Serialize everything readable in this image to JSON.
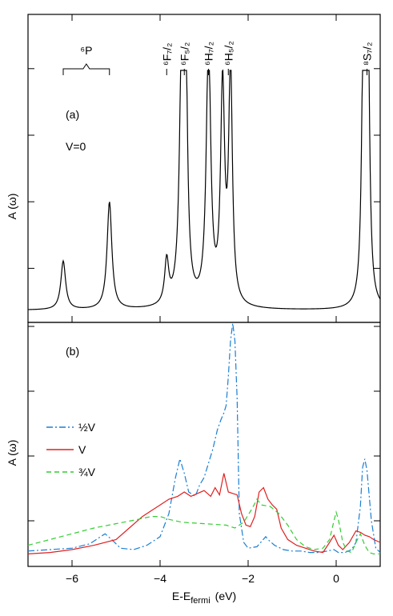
{
  "chart_data": [
    {
      "type": "line",
      "panel_label": "(a)",
      "annotation": "V=0",
      "ylabel": "A (ω)",
      "xlim": [
        -7,
        1
      ],
      "color": "#000000",
      "multiplet_labels": [
        {
          "text": "⁶P",
          "x": [
            -6.2,
            -5.15
          ]
        },
        {
          "text": "⁶F₇/₂",
          "x": -3.85
        },
        {
          "text": "⁶F₅/₂",
          "x": -3.45
        },
        {
          "text": "⁶H₇/₂",
          "x": -2.9
        },
        {
          "text": "⁶H₅/₂",
          "x": -2.45
        },
        {
          "text": "⁸S₇/₂",
          "x": 0.7
        }
      ],
      "peaks": [
        {
          "x": -6.2,
          "h": 0.095,
          "w": 0.065
        },
        {
          "x": -5.15,
          "h": 0.21,
          "w": 0.065
        },
        {
          "x": -3.85,
          "h": 0.085,
          "w": 0.055
        },
        {
          "x": -3.5,
          "h": 0.55,
          "w": 0.06
        },
        {
          "x": -3.42,
          "h": 0.44,
          "w": 0.045
        },
        {
          "x": -2.9,
          "h": 0.52,
          "w": 0.06
        },
        {
          "x": -2.58,
          "h": 0.42,
          "w": 0.055
        },
        {
          "x": -2.4,
          "h": 0.46,
          "w": 0.05
        },
        {
          "x": 0.62,
          "h": 0.55,
          "w": 0.045
        },
        {
          "x": 0.72,
          "h": 0.55,
          "w": 0.045
        }
      ]
    },
    {
      "type": "line",
      "panel_label": "(b)",
      "ylabel": "A (ω)",
      "xlabel": "E-E",
      "xlabel_sub": "fermi",
      "xlabel_unit": "(eV)",
      "xlim": [
        -7,
        1
      ],
      "xticks": [
        -6,
        -4,
        -2,
        0
      ],
      "series": [
        {
          "name": "V",
          "name_prefix": "½",
          "color": "#1a7fd4",
          "dash": "8,3,2,3",
          "x": [
            -7,
            -6.5,
            -6,
            -5.6,
            -5.4,
            -5.25,
            -5.1,
            -4.9,
            -4.6,
            -4.3,
            -4.0,
            -3.8,
            -3.65,
            -3.55,
            -3.45,
            -3.35,
            -3.2,
            -3.1,
            -3.0,
            -2.9,
            -2.8,
            -2.7,
            -2.62,
            -2.55,
            -2.5,
            -2.45,
            -2.4,
            -2.35,
            -2.3,
            -2.25,
            -2.2,
            -2.1,
            -2.0,
            -1.8,
            -1.6,
            -1.55,
            -1.4,
            -1.2,
            -1.0,
            -0.8,
            -0.6,
            -0.4,
            -0.2,
            -0.05,
            0.05,
            0.2,
            0.35,
            0.45,
            0.55,
            0.6,
            0.65,
            0.7,
            0.8,
            0.9,
            1.0
          ],
          "y": [
            0.04,
            0.05,
            0.06,
            0.09,
            0.13,
            0.16,
            0.12,
            0.06,
            0.05,
            0.08,
            0.14,
            0.3,
            0.55,
            0.68,
            0.58,
            0.45,
            0.42,
            0.5,
            0.55,
            0.65,
            0.75,
            0.88,
            0.95,
            1.0,
            1.05,
            1.25,
            1.5,
            1.65,
            1.5,
            1.1,
            0.3,
            0.1,
            0.06,
            0.07,
            0.14,
            0.12,
            0.08,
            0.05,
            0.04,
            0.04,
            0.03,
            0.03,
            0.04,
            0.05,
            0.03,
            0.03,
            0.05,
            0.1,
            0.35,
            0.62,
            0.68,
            0.6,
            0.25,
            0.06,
            0.03
          ]
        },
        {
          "name": "V",
          "name_prefix": "",
          "color": "#e02020",
          "dash": "",
          "x": [
            -7,
            -6.5,
            -6,
            -5.5,
            -5.0,
            -4.7,
            -4.4,
            -4.2,
            -4.0,
            -3.8,
            -3.6,
            -3.45,
            -3.3,
            -3.15,
            -3.0,
            -2.85,
            -2.75,
            -2.65,
            -2.55,
            -2.45,
            -2.35,
            -2.25,
            -2.15,
            -2.05,
            -1.95,
            -1.85,
            -1.75,
            -1.65,
            -1.55,
            -1.45,
            -1.35,
            -1.25,
            -1.1,
            -0.9,
            -0.7,
            -0.5,
            -0.3,
            -0.15,
            -0.05,
            0.05,
            0.15,
            0.3,
            0.45,
            0.55,
            0.65,
            0.75,
            0.85,
            1.0
          ],
          "y": [
            0.02,
            0.03,
            0.05,
            0.08,
            0.12,
            0.2,
            0.28,
            0.32,
            0.36,
            0.4,
            0.42,
            0.45,
            0.42,
            0.44,
            0.46,
            0.42,
            0.48,
            0.43,
            0.58,
            0.45,
            0.44,
            0.43,
            0.3,
            0.22,
            0.21,
            0.28,
            0.45,
            0.48,
            0.4,
            0.36,
            0.33,
            0.2,
            0.12,
            0.08,
            0.06,
            0.04,
            0.03,
            0.1,
            0.15,
            0.08,
            0.05,
            0.1,
            0.18,
            0.17,
            0.15,
            0.14,
            0.12,
            0.1
          ]
        },
        {
          "name": "V",
          "name_prefix": "¾",
          "color": "#33cc33",
          "dash": "6,4",
          "x": [
            -7,
            -6.5,
            -6,
            -5.5,
            -5.0,
            -4.5,
            -4.2,
            -4.0,
            -3.8,
            -3.5,
            -3.0,
            -2.5,
            -2.3,
            -2.1,
            -1.9,
            -1.8,
            -1.7,
            -1.5,
            -1.3,
            -1.1,
            -0.9,
            -0.7,
            -0.5,
            -0.3,
            -0.15,
            -0.05,
            0.0,
            0.05,
            0.15,
            0.25,
            0.35,
            0.45,
            0.55,
            0.65,
            0.75,
            0.85,
            1.0
          ],
          "y": [
            0.08,
            0.12,
            0.16,
            0.2,
            0.23,
            0.26,
            0.28,
            0.28,
            0.26,
            0.24,
            0.23,
            0.22,
            0.2,
            0.24,
            0.34,
            0.4,
            0.36,
            0.35,
            0.3,
            0.22,
            0.12,
            0.07,
            0.05,
            0.06,
            0.12,
            0.25,
            0.31,
            0.26,
            0.1,
            0.04,
            0.03,
            0.1,
            0.16,
            0.08,
            0.03,
            0.02,
            0.02
          ]
        }
      ]
    }
  ]
}
